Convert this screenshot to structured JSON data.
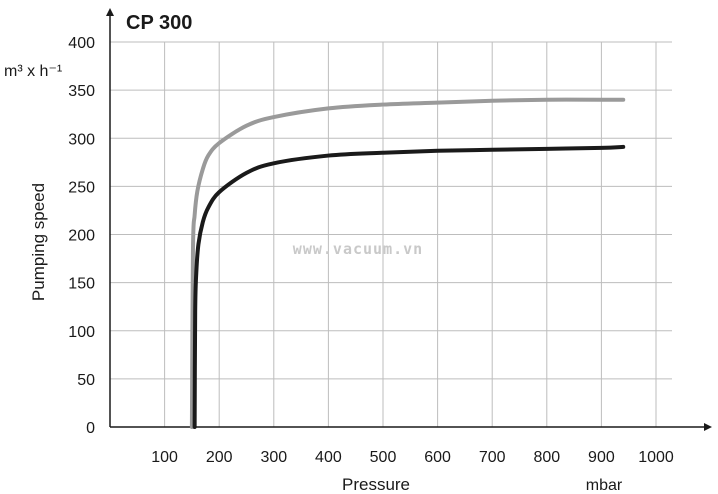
{
  "chart_data": {
    "type": "line",
    "title": "CP 300",
    "xlabel": "Pressure",
    "xunit": "mbar",
    "ylabel": "Pumping speed",
    "yunit": "m³ x h⁻¹",
    "xlim": [
      0,
      1000
    ],
    "ylim": [
      0,
      400
    ],
    "xticks": [
      100,
      200,
      300,
      400,
      500,
      600,
      700,
      800,
      900,
      1000
    ],
    "yticks": [
      0,
      50,
      100,
      150,
      200,
      250,
      300,
      350,
      400
    ],
    "grid": true,
    "watermark": "www.vacuum.vn",
    "series": [
      {
        "color": "#9a9a9a",
        "x": [
          150,
          152,
          155,
          160,
          170,
          180,
          200,
          250,
          300,
          400,
          500,
          600,
          700,
          800,
          900,
          940
        ],
        "y": [
          0,
          185,
          220,
          245,
          268,
          282,
          295,
          313,
          322,
          331,
          335,
          337,
          339,
          340,
          340,
          340
        ]
      },
      {
        "color": "#1a1a1a",
        "x": [
          155,
          156,
          158,
          162,
          170,
          180,
          200,
          250,
          300,
          400,
          500,
          600,
          700,
          800,
          900,
          940
        ],
        "y": [
          0,
          120,
          160,
          190,
          213,
          228,
          244,
          264,
          274,
          282,
          285,
          287,
          288,
          289,
          290,
          291
        ]
      }
    ]
  }
}
